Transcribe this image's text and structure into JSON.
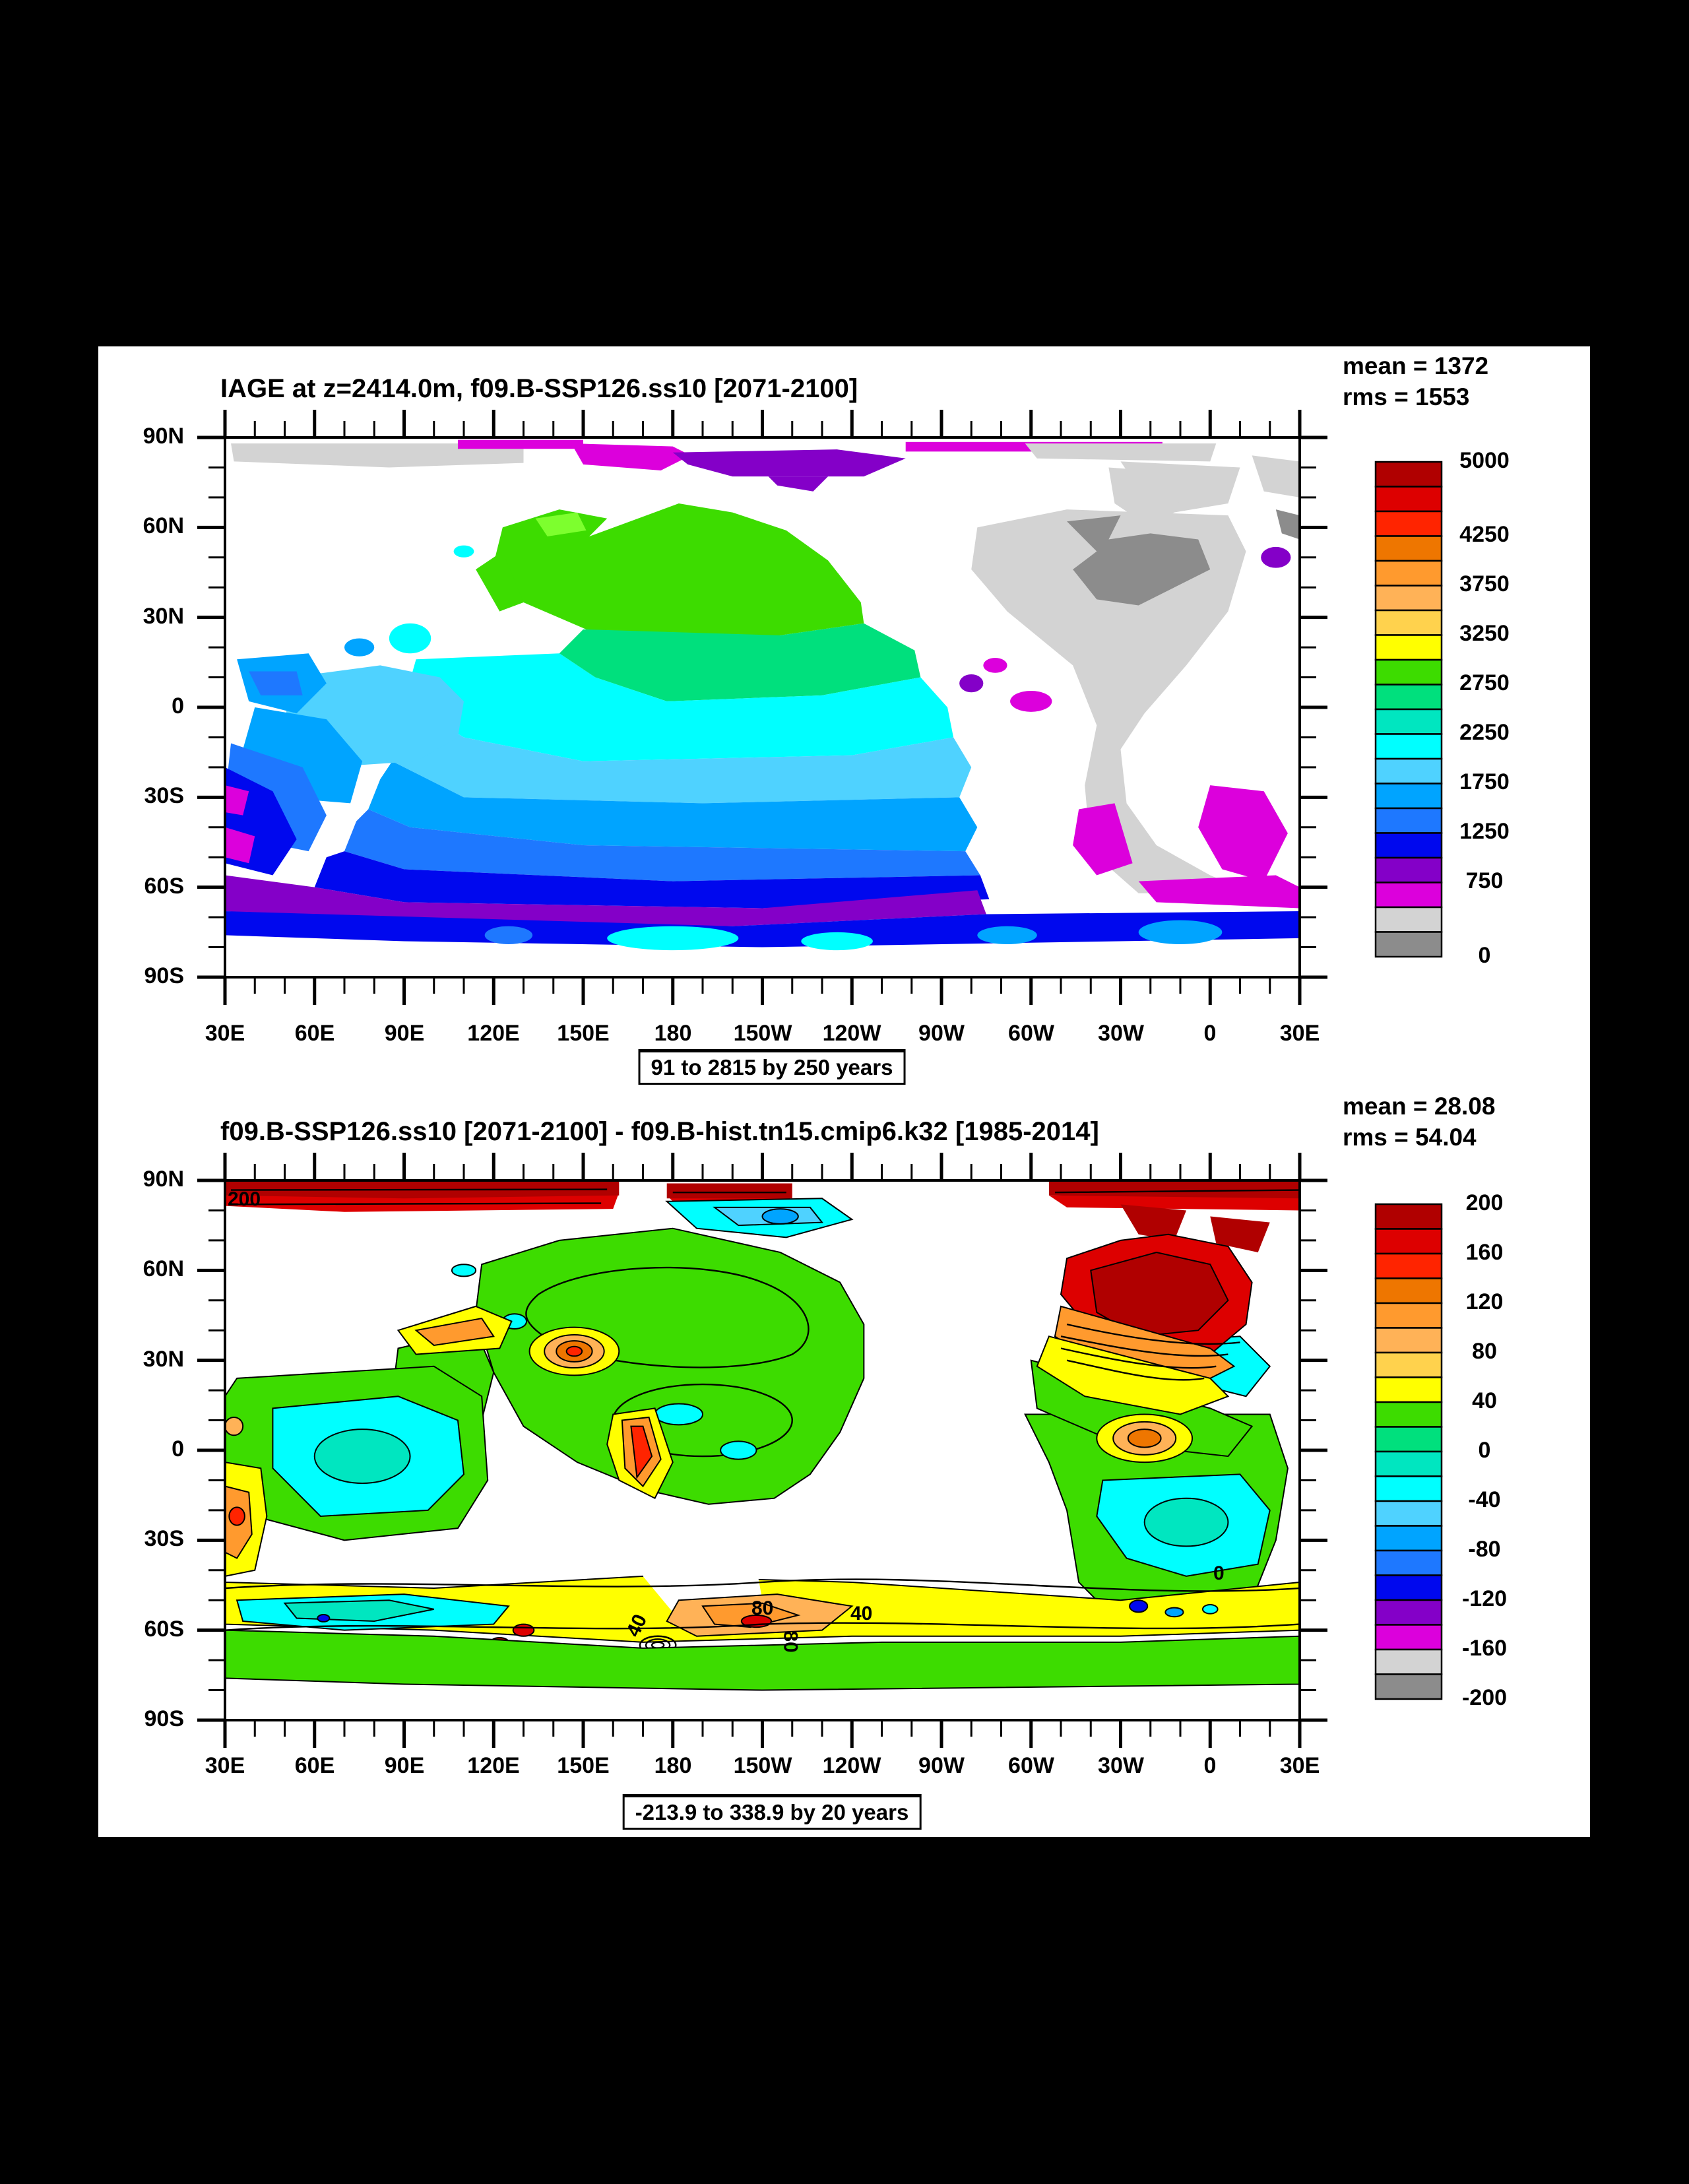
{
  "panels": [
    {
      "title": "IAGE at z=2414.0m, f09.B-SSP126.ss10 [2071-2100]",
      "mean": "mean = 1372",
      "rms": "rms = 1553",
      "caption": "91 to 2815 by 250 years",
      "colorbar": {
        "labels": [
          "5000",
          "4250",
          "3750",
          "3250",
          "2750",
          "2250",
          "1750",
          "1250",
          "750",
          "0"
        ],
        "colors_top_to_bottom": [
          "#b00000",
          "#dd0000",
          "#ff2400",
          "#ee7600",
          "#ff9a2e",
          "#ffb257",
          "#ffd24d",
          "#ffff00",
          "#3ddc00",
          "#00e07d",
          "#00e6c0",
          "#00ffff",
          "#4fd2ff",
          "#00a4ff",
          "#1e78ff",
          "#0008ee",
          "#8400c8",
          "#dc00dc",
          "#d3d3d3",
          "#8c8c8c"
        ]
      }
    },
    {
      "title": "f09.B-SSP126.ss10 [2071-2100] - f09.B-hist.tn15.cmip6.k32 [1985-2014]",
      "mean": "mean = 28.08",
      "rms": "rms = 54.04",
      "caption": "-213.9 to 338.9 by 20 years",
      "colorbar": {
        "labels": [
          "200",
          "160",
          "120",
          "80",
          "40",
          "0",
          "-40",
          "-80",
          "-120",
          "-160",
          "-200"
        ],
        "colors_top_to_bottom": [
          "#b00000",
          "#dd0000",
          "#ff2400",
          "#ee7600",
          "#ff9a2e",
          "#ffb257",
          "#ffd24d",
          "#ffff00",
          "#3ddc00",
          "#00e07d",
          "#00e6c0",
          "#00ffff",
          "#4fd2ff",
          "#00a4ff",
          "#1e78ff",
          "#0008ee",
          "#8400c8",
          "#dc00dc",
          "#d3d3d3",
          "#8c8c8c"
        ]
      },
      "contour_labels": [
        "200",
        "80",
        "40",
        "40",
        "80",
        "0"
      ]
    }
  ],
  "axes": {
    "lat": [
      "90N",
      "60N",
      "30N",
      "0",
      "30S",
      "60S",
      "90S"
    ],
    "lon": [
      "30E",
      "60E",
      "90E",
      "120E",
      "150E",
      "180",
      "150W",
      "120W",
      "90W",
      "60W",
      "30W",
      "0",
      "30E"
    ]
  },
  "chart_data": [
    {
      "type": "heatmap",
      "subtype": "filled-contour-world-map",
      "title": "IAGE at z=2414.0m, f09.B-SSP126.ss10 [2071-2100]",
      "variable": "ideal age (years) at depth 2414.0 m",
      "stats": {
        "mean": 1372,
        "rms": 1553
      },
      "value_range_note": "91 to 2815 by 250 years",
      "levels": [
        0,
        250,
        500,
        750,
        1000,
        1250,
        1500,
        1750,
        2000,
        2250,
        2500,
        2750,
        3000,
        3250,
        3500,
        3750,
        4000,
        4250,
        4500,
        4750,
        5000
      ],
      "colorbar_labels": [
        5000,
        4250,
        3750,
        3250,
        2750,
        2250,
        1750,
        1250,
        750,
        0
      ],
      "x_ticks": [
        "30E",
        "60E",
        "90E",
        "120E",
        "150E",
        "180",
        "150W",
        "120W",
        "90W",
        "60W",
        "30W",
        "0",
        "30E"
      ],
      "y_ticks": [
        "90N",
        "60N",
        "30N",
        "0",
        "30S",
        "60S",
        "90S"
      ],
      "legend_position": "right",
      "grid": false,
      "regions": [
        {
          "area": "North Pacific 15-55N",
          "value_years": "2500-2800 (green), small 2800+ patch near 55N"
        },
        {
          "area": "Tropical Pacific",
          "value_years": "1750-2250 (cyan/turquoise)"
        },
        {
          "area": "South Pacific 10-40S",
          "value_years": "1250-1750 (sky/azure blues)"
        },
        {
          "area": "Indian Ocean",
          "value_years": "1000-1500 (blues), oldest ~1000 in SW"
        },
        {
          "area": "Southern Ocean 45-60S",
          "value_years": "500-750 (purple band)"
        },
        {
          "area": "Southern Ocean 60-70S",
          "value_years": "1000-1500 (blue band with cyan patches)"
        },
        {
          "area": "Atlantic",
          "value_years": "250-500 (light gray), 0-250 dark gray subpolar North Atlantic"
        },
        {
          "area": "South Atlantic 35-55S and Agulhas",
          "value_years": "~500-750 (magenta)"
        },
        {
          "area": "Arctic 82-90N",
          "value_years": "mix: gray 0-500, magenta ~600, purple ~700"
        }
      ]
    },
    {
      "type": "heatmap",
      "subtype": "filled-contour-difference-map-with-contour-lines",
      "title": "f09.B-SSP126.ss10 [2071-2100] - f09.B-hist.tn15.cmip6.k32 [1985-2014]",
      "variable": "ideal age difference (years) at depth 2414.0 m",
      "stats": {
        "mean": 28.08,
        "rms": 54.04
      },
      "value_range_note": "-213.9 to 338.9 by 20 years",
      "levels_step": 20,
      "levels_range": [
        -200,
        200
      ],
      "colorbar_labels": [
        200,
        160,
        120,
        80,
        40,
        0,
        -40,
        -80,
        -120,
        -160,
        -200
      ],
      "contour_line_labels": [
        200,
        80,
        40,
        0
      ],
      "x_ticks": [
        "30E",
        "60E",
        "90E",
        "120E",
        "150E",
        "180",
        "150W",
        "120W",
        "90W",
        "60W",
        "30W",
        "0",
        "30E"
      ],
      "y_ticks": [
        "90N",
        "60N",
        "30N",
        "0",
        "30S",
        "60S",
        "90S"
      ],
      "legend_position": "right",
      "grid": false,
      "regions": [
        {
          "area": "Arctic 85-90N",
          "value_years": "+200 and higher (dark red band, 200 contour labeled)"
        },
        {
          "area": "Arctic near 180, 80-85N",
          "value_years": "-40 to -100 (cyan/blue patch)"
        },
        {
          "area": "North & tropical Pacific",
          "value_years": "0 to +40 (green) with scattered -20 cyan spots"
        },
        {
          "area": "NW Pacific ~30N 140E",
          "value_years": "+60 to +140 concentric orange eddy"
        },
        {
          "area": "W equatorial Pacific ~170E",
          "value_years": "+100 to +180 narrow red streak"
        },
        {
          "area": "Subpolar North Atlantic",
          "value_years": "+160 to >200 (red/dark red, dense contours)"
        },
        {
          "area": "Equatorial Atlantic ~0N 20W",
          "value_years": "+80 to +140 orange eddy"
        },
        {
          "area": "South Atlantic & Indian 10-35S",
          "value_years": "-20 to -60 (cyan/turquoise), 0 contour labeled"
        },
        {
          "area": "Southern Ocean 50-65S",
          "value_years": "+40 to +100 yellow/orange band, 40 and 80 contours labeled, red spots near 180"
        },
        {
          "area": "S Indian 45-55S",
          "value_years": "-20 to -120 cyan band with blue spots"
        }
      ]
    }
  ]
}
